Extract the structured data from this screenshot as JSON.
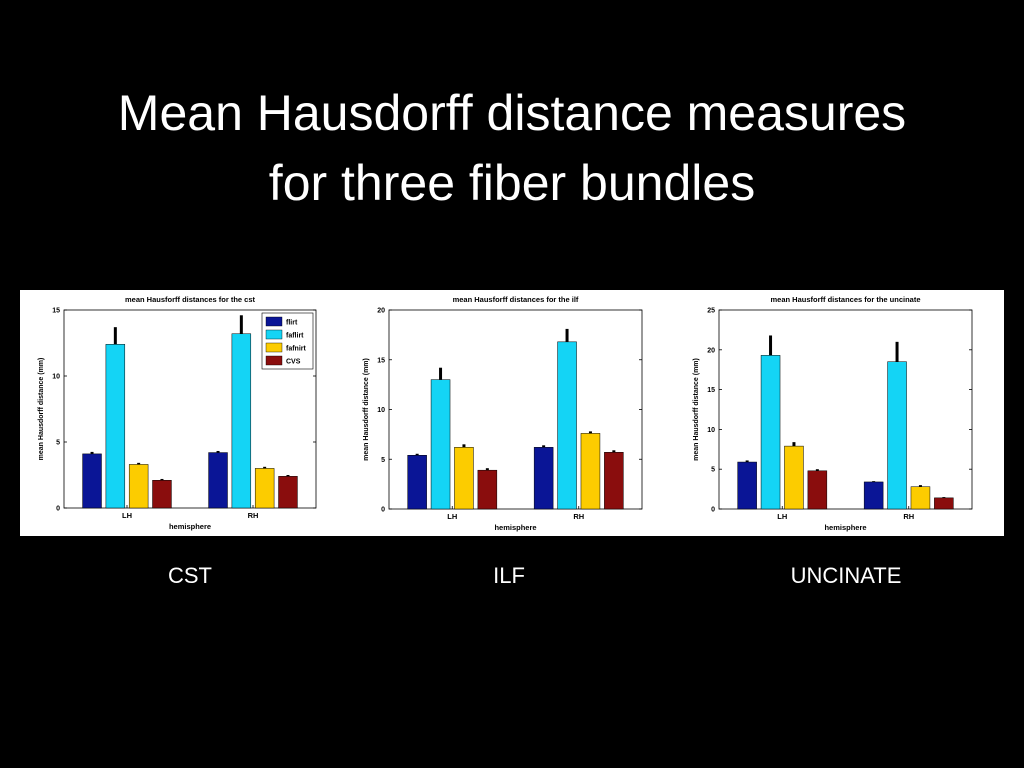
{
  "slide": {
    "title_line1": "Mean Hausdorff distance measures",
    "title_line2": "for three fiber bundles"
  },
  "colors": {
    "flirt": "#0a1596",
    "faflirt": "#14d4f5",
    "fafnirt": "#fccc00",
    "CVS": "#8a0d0d",
    "error_bar": "#000000",
    "page_background": "#000000",
    "figure_background": "#ffffff"
  },
  "chart_data": [
    {
      "type": "bar",
      "title": "mean Hausforff distances for the cst",
      "xlabel": "hemisphere",
      "ylabel": "mean Hausdorff distance (mm)",
      "categories": [
        "LH",
        "RH"
      ],
      "ylim": [
        0,
        15
      ],
      "yticks": [
        0,
        5,
        10,
        15
      ],
      "legend": "top-right",
      "bundle_label": "CST",
      "series": [
        {
          "name": "flirt",
          "values": [
            4.1,
            4.2
          ],
          "errors": [
            0.15,
            0.12
          ]
        },
        {
          "name": "faflirt",
          "values": [
            12.4,
            13.2
          ],
          "errors": [
            1.3,
            1.4
          ]
        },
        {
          "name": "fafnirt",
          "values": [
            3.3,
            3.0
          ],
          "errors": [
            0.12,
            0.12
          ]
        },
        {
          "name": "CVS",
          "values": [
            2.1,
            2.4
          ],
          "errors": [
            0.1,
            0.1
          ]
        }
      ]
    },
    {
      "type": "bar",
      "title": "mean Hausforff distances for the ilf",
      "xlabel": "hemisphere",
      "ylabel": "mean Hausdorff distance (mm)",
      "categories": [
        "LH",
        "RH"
      ],
      "ylim": [
        0,
        20
      ],
      "yticks": [
        0,
        5,
        10,
        15,
        20
      ],
      "bundle_label": "ILF",
      "series": [
        {
          "name": "flirt",
          "values": [
            5.4,
            6.2
          ],
          "errors": [
            0.15,
            0.2
          ]
        },
        {
          "name": "faflirt",
          "values": [
            13.0,
            16.8
          ],
          "errors": [
            1.2,
            1.3
          ]
        },
        {
          "name": "fafnirt",
          "values": [
            6.2,
            7.6
          ],
          "errors": [
            0.3,
            0.2
          ]
        },
        {
          "name": "CVS",
          "values": [
            3.9,
            5.7
          ],
          "errors": [
            0.2,
            0.2
          ]
        }
      ]
    },
    {
      "type": "bar",
      "title": "mean Hausforff distances for the uncinate",
      "xlabel": "hemisphere",
      "ylabel": "mean Hausdorff distance (mm)",
      "categories": [
        "LH",
        "RH"
      ],
      "ylim": [
        0,
        25
      ],
      "yticks": [
        0,
        5,
        10,
        15,
        20,
        25
      ],
      "bundle_label": "UNCINATE",
      "series": [
        {
          "name": "flirt",
          "values": [
            5.9,
            3.4
          ],
          "errors": [
            0.2,
            0.1
          ]
        },
        {
          "name": "faflirt",
          "values": [
            19.3,
            18.5
          ],
          "errors": [
            2.5,
            2.5
          ]
        },
        {
          "name": "fafnirt",
          "values": [
            7.9,
            2.8
          ],
          "errors": [
            0.5,
            0.2
          ]
        },
        {
          "name": "CVS",
          "values": [
            4.8,
            1.4
          ],
          "errors": [
            0.2,
            0.1
          ]
        }
      ]
    }
  ]
}
